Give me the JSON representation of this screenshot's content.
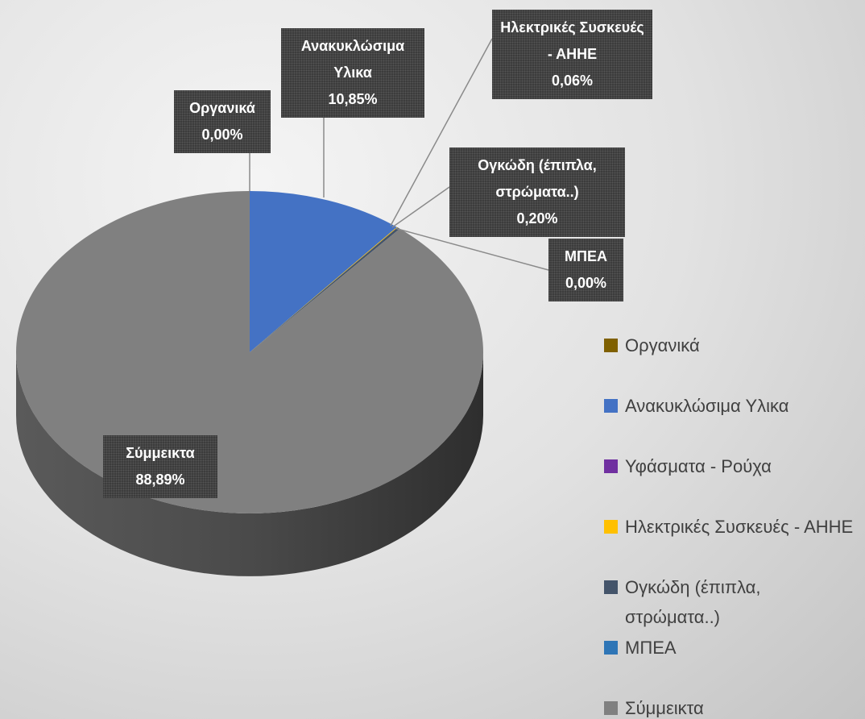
{
  "chart_data": {
    "type": "pie",
    "categories": [
      "Οργανικά",
      "Ανακυκλώσιμα Υλικα",
      "Υφάσματα - Ρούχα",
      "Ηλεκτρικές Συσκευές - ΑΗΗΕ",
      "Ογκώδη (έπιπλα, στρώματα..)",
      "ΜΠΕΑ",
      "Σύμμεικτα"
    ],
    "values": [
      0.0,
      10.85,
      0,
      0.06,
      0.2,
      0.0,
      88.89
    ],
    "value_labels": [
      "0,00%",
      "10,85%",
      null,
      "0,06%",
      "0,20%",
      "0,00%",
      "88,89%"
    ],
    "colors": [
      "#7f6000",
      "#4472c4",
      "#7030a0",
      "#ffc000",
      "#44546a",
      "#2e75b6",
      "#808080"
    ],
    "legend": "right"
  }
}
